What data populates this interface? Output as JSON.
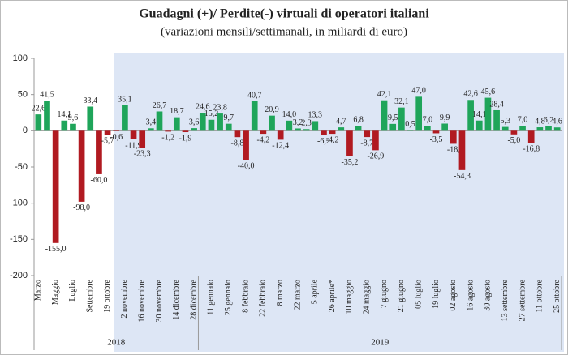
{
  "chart_data": {
    "type": "bar",
    "title": "Guadagni (+)/ Perdite(-) virtuali di operatori italiani",
    "subtitle": "(variazioni mensili/settimanali, in miliardi di euro)",
    "categories": [
      "Marzo",
      null,
      "Maggio",
      null,
      "Luglio",
      null,
      "Settembre",
      null,
      "19 ottobre",
      null,
      "2 novembre",
      null,
      "16 novembre",
      null,
      "30 novembre",
      null,
      "14 dicembre",
      null,
      "28 dicembre",
      null,
      "11 gennaio",
      null,
      "25 gennaio",
      null,
      "8 febbraio",
      null,
      "22 febbraio",
      null,
      "8 marzo",
      null,
      "22 marzo",
      null,
      "5 aprile",
      null,
      "26 aprile*",
      null,
      "10 maggio",
      null,
      "24 maggio",
      null,
      "7 giugno",
      null,
      "21 giugno",
      null,
      "05 luglio",
      null,
      "19 luglio",
      null,
      "02 agosto",
      null,
      "16 agosto",
      null,
      "30 agosto",
      null,
      "13 settembre",
      null,
      "27 settembre",
      null,
      "11 ottobre",
      null,
      "25 ottobre"
    ],
    "values": [
      22.6,
      41.5,
      -155.0,
      14.1,
      9.6,
      -98.0,
      33.4,
      -60.0,
      -5.7,
      -0.6,
      35.1,
      -11.9,
      -23.3,
      3.4,
      26.7,
      -1.2,
      18.7,
      -1.9,
      3.6,
      24.6,
      15.2,
      23.8,
      9.7,
      -8.8,
      -40.0,
      40.7,
      -4.2,
      20.9,
      -12.4,
      14.0,
      3.2,
      2.3,
      13.3,
      -6.2,
      -4.2,
      4.7,
      -35.2,
      6.8,
      -8.7,
      -26.9,
      42.1,
      9.5,
      32.1,
      0.5,
      47.0,
      7.0,
      -3.5,
      9.9,
      -18,
      -54.3,
      42.6,
      14.1,
      45.6,
      28.4,
      5.3,
      -5.0,
      7.0,
      -16.8,
      4.8,
      6.2,
      4.6
    ],
    "value_labels": [
      "22,6",
      "41,5",
      "-155,0",
      "14,1",
      "9,6",
      "-98,0",
      "33,4",
      "-60,0",
      "-5,7",
      "-0,6",
      "35,1",
      "-11,9",
      "-23,3",
      "3,4",
      "26,7",
      "-1,2",
      "18,7",
      "-1,9",
      "3,6",
      "24,6",
      "15,2",
      "23,8",
      "9,7",
      "-8,8",
      "-40,0",
      "40,7",
      "-4,2",
      "20,9",
      "-12,4",
      "14,0",
      "3,2",
      "2,3",
      "13,3",
      "-6,2",
      "-4,2",
      "4,7",
      "-35,2",
      "6,8",
      "-8,7",
      "-26,9",
      "42,1",
      "9,5",
      "32,1",
      "0,5",
      "47,0",
      "7,0",
      "-3,5",
      "9,9",
      "-18,",
      "-54,3",
      "42,6",
      "14,1",
      "45,6",
      "28,4",
      "5,3",
      "-5,0",
      "7,0",
      "-16,8",
      "4,8",
      "6,2",
      "4,6"
    ],
    "positive_color": "#1fa55a",
    "negative_color": "#b11a21",
    "groups": [
      {
        "label": "2018",
        "count": 19
      },
      {
        "label": "2019",
        "count": 42
      }
    ],
    "ylim": [
      -200,
      100
    ],
    "yticks": [
      100,
      50,
      0,
      -50,
      -100,
      -150,
      -200
    ],
    "grid": false
  }
}
